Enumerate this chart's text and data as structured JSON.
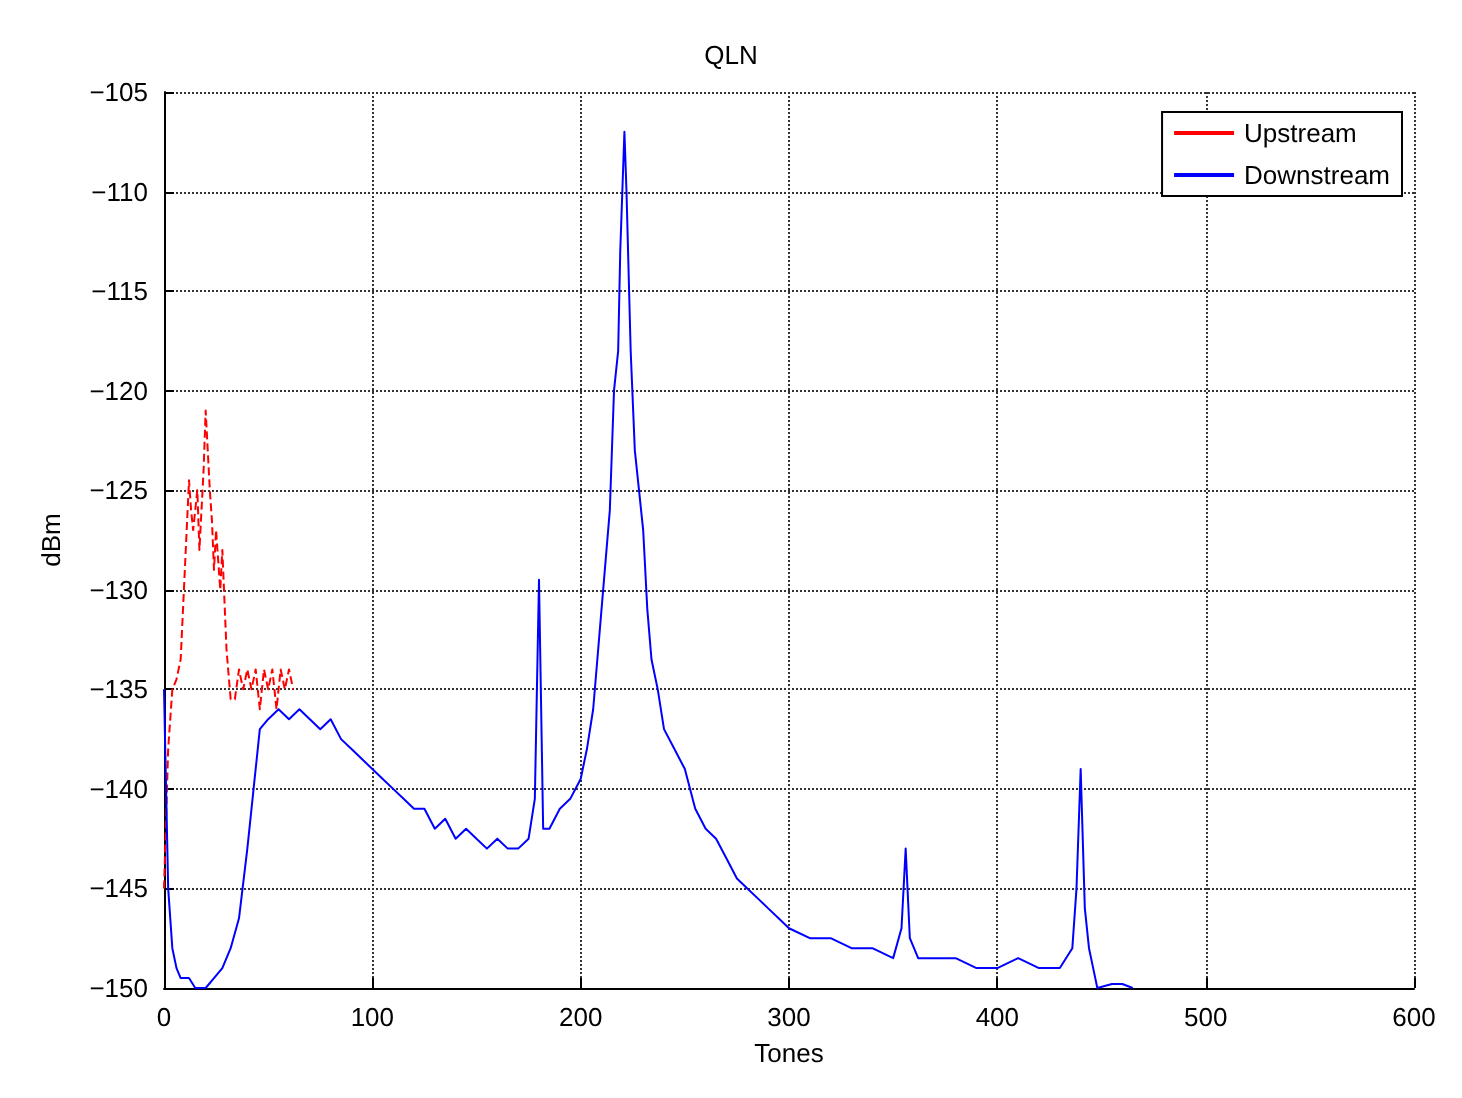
{
  "chart_data": {
    "type": "line",
    "title": "QLN",
    "xlabel": "Tones",
    "ylabel": "dBm",
    "xlim": [
      0,
      600
    ],
    "xticks": [
      0,
      100,
      200,
      300,
      400,
      500,
      600
    ],
    "ylim": [
      -150,
      -105
    ],
    "yticks": [
      -150,
      -145,
      -140,
      -135,
      -130,
      -125,
      -120,
      -115,
      -110,
      -105
    ],
    "grid": true,
    "legend": "top right",
    "series": [
      {
        "name": "Upstream",
        "color": "#ff0000",
        "line_style": "dashed",
        "x": [
          0,
          2,
          4,
          6,
          8,
          10,
          12,
          13,
          14,
          16,
          17,
          18,
          19,
          20,
          22,
          23,
          24,
          25,
          27,
          28,
          30,
          32,
          34,
          36,
          38,
          40,
          42,
          44,
          46,
          48,
          50,
          52,
          54,
          56,
          58,
          60,
          62
        ],
        "values": [
          -145,
          -138,
          -135,
          -134.5,
          -133.5,
          -129,
          -124.5,
          -126,
          -127,
          -125,
          -128,
          -126,
          -124,
          -121,
          -125,
          -126.5,
          -129,
          -127,
          -130,
          -128,
          -133,
          -135.5,
          -135.5,
          -134,
          -135,
          -134,
          -135,
          -134,
          -136,
          -134,
          -135,
          -134,
          -136,
          -134,
          -135,
          -134,
          -135
        ]
      },
      {
        "name": "Downstream",
        "color": "#0000ff",
        "line_style": "solid",
        "x": [
          0,
          1,
          2,
          4,
          6,
          8,
          12,
          15,
          20,
          24,
          28,
          32,
          36,
          40,
          42,
          44,
          46,
          50,
          55,
          60,
          65,
          70,
          75,
          80,
          85,
          90,
          95,
          100,
          105,
          110,
          115,
          120,
          125,
          130,
          135,
          140,
          145,
          150,
          155,
          160,
          165,
          170,
          175,
          178,
          180,
          182,
          185,
          190,
          195,
          200,
          203,
          206,
          208,
          210,
          212,
          214,
          216,
          218,
          219,
          220,
          221,
          222,
          224,
          226,
          228,
          230,
          232,
          234,
          237,
          240,
          245,
          250,
          255,
          260,
          265,
          270,
          275,
          280,
          285,
          290,
          295,
          300,
          310,
          320,
          330,
          340,
          350,
          354,
          356,
          358,
          362,
          370,
          380,
          390,
          400,
          410,
          420,
          430,
          436,
          438,
          440,
          442,
          444,
          446,
          448,
          455,
          460,
          465
        ],
        "values": [
          -135,
          -140,
          -145,
          -148,
          -149,
          -149.5,
          -149.5,
          -150,
          -150,
          -149.5,
          -149,
          -148,
          -146.5,
          -143,
          -141,
          -139,
          -137,
          -136.5,
          -136,
          -136.5,
          -136,
          -136.5,
          -137,
          -136.5,
          -137.5,
          -138,
          -138.5,
          -139,
          -139.5,
          -140,
          -140.5,
          -141,
          -141,
          -142,
          -141.5,
          -142.5,
          -142,
          -142.5,
          -143,
          -142.5,
          -143,
          -143,
          -142.5,
          -140.5,
          -129.5,
          -142,
          -142,
          -141,
          -140.5,
          -139.5,
          -138,
          -136,
          -133.5,
          -131,
          -128.5,
          -126,
          -120,
          -118,
          -113,
          -110,
          -107,
          -110,
          -118,
          -123,
          -125,
          -127,
          -131,
          -133.5,
          -135,
          -137,
          -138,
          -139,
          -141,
          -142,
          -142.5,
          -143.5,
          -144.5,
          -145,
          -145.5,
          -146,
          -146.5,
          -147,
          -147.5,
          -147.5,
          -148,
          -148,
          -148.5,
          -147,
          -143,
          -147.5,
          -148.5,
          -148.5,
          -148.5,
          -149,
          -149,
          -148.5,
          -149,
          -149,
          -148,
          -145,
          -139,
          -146,
          -148,
          -149,
          -150,
          -149.8,
          -149.8,
          -150
        ]
      }
    ]
  }
}
